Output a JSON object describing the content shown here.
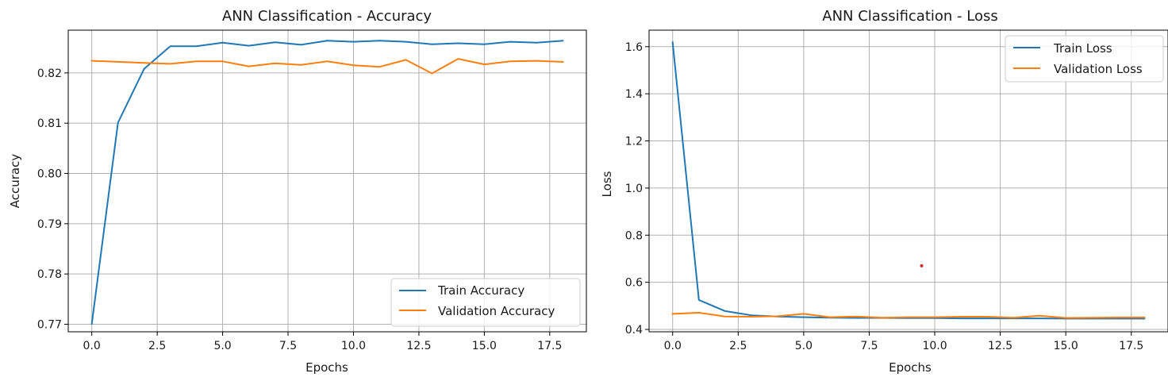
{
  "chart_data": [
    {
      "type": "line",
      "title": "ANN Classification - Accuracy",
      "xlabel": "Epochs",
      "ylabel": "Accuracy",
      "xlim": [
        -0.9,
        18.9
      ],
      "ylim": [
        0.7685,
        0.8285
      ],
      "xticks": [
        0,
        2.5,
        5,
        7.5,
        10,
        12.5,
        15,
        17.5
      ],
      "xtick_labels": [
        "0.0",
        "2.5",
        "5.0",
        "7.5",
        "10.0",
        "12.5",
        "15.0",
        "17.5"
      ],
      "yticks": [
        0.77,
        0.78,
        0.79,
        0.8,
        0.81,
        0.82
      ],
      "ytick_labels": [
        "0.77",
        "0.78",
        "0.79",
        "0.80",
        "0.81",
        "0.82"
      ],
      "grid": true,
      "legend_position": "lower-right",
      "x": [
        0,
        1,
        2,
        3,
        4,
        5,
        6,
        7,
        8,
        9,
        10,
        11,
        12,
        13,
        14,
        15,
        16,
        17,
        18
      ],
      "series": [
        {
          "name": "Train Accuracy",
          "color": "#1f77b4",
          "values": [
            0.7701,
            0.8101,
            0.8208,
            0.8253,
            0.8253,
            0.826,
            0.8254,
            0.8261,
            0.8256,
            0.8264,
            0.8262,
            0.8264,
            0.8262,
            0.8257,
            0.8259,
            0.8257,
            0.8262,
            0.826,
            0.8264
          ]
        },
        {
          "name": "Validation Accuracy",
          "color": "#ff7f0e",
          "values": [
            0.8224,
            0.8222,
            0.822,
            0.8218,
            0.8223,
            0.8223,
            0.8213,
            0.8219,
            0.8216,
            0.8223,
            0.8215,
            0.8212,
            0.8226,
            0.8199,
            0.8228,
            0.8217,
            0.8223,
            0.8224,
            0.8222
          ]
        }
      ]
    },
    {
      "type": "line",
      "title": "ANN Classification - Loss",
      "xlabel": "Epochs",
      "ylabel": "Loss",
      "xlim": [
        -0.9,
        18.9
      ],
      "ylim": [
        0.39,
        1.67
      ],
      "xticks": [
        0,
        2.5,
        5,
        7.5,
        10,
        12.5,
        15,
        17.5
      ],
      "xtick_labels": [
        "0.0",
        "2.5",
        "5.0",
        "7.5",
        "10.0",
        "12.5",
        "15.0",
        "17.5"
      ],
      "yticks": [
        0.4,
        0.6,
        0.8,
        1.0,
        1.2,
        1.4,
        1.6
      ],
      "ytick_labels": [
        "0.4",
        "0.6",
        "0.8",
        "1.0",
        "1.2",
        "1.4",
        "1.6"
      ],
      "grid": true,
      "legend_position": "upper-right",
      "x": [
        0,
        1,
        2,
        3,
        4,
        5,
        6,
        7,
        8,
        9,
        10,
        11,
        12,
        13,
        14,
        15,
        16,
        17,
        18
      ],
      "series": [
        {
          "name": "Train Loss",
          "color": "#1f77b4",
          "values": [
            1.618,
            0.525,
            0.478,
            0.46,
            0.455,
            0.452,
            0.45,
            0.449,
            0.449,
            0.448,
            0.448,
            0.447,
            0.447,
            0.447,
            0.447,
            0.446,
            0.446,
            0.446,
            0.446
          ]
        },
        {
          "name": "Validation Loss",
          "color": "#ff7f0e",
          "values": [
            0.466,
            0.471,
            0.455,
            0.454,
            0.456,
            0.466,
            0.452,
            0.455,
            0.45,
            0.452,
            0.452,
            0.454,
            0.454,
            0.45,
            0.458,
            0.449,
            0.45,
            0.451,
            0.451
          ]
        }
      ],
      "annotations": [
        {
          "type": "point",
          "x": 9.5,
          "y": 0.67,
          "color": "#d62728"
        }
      ]
    }
  ]
}
